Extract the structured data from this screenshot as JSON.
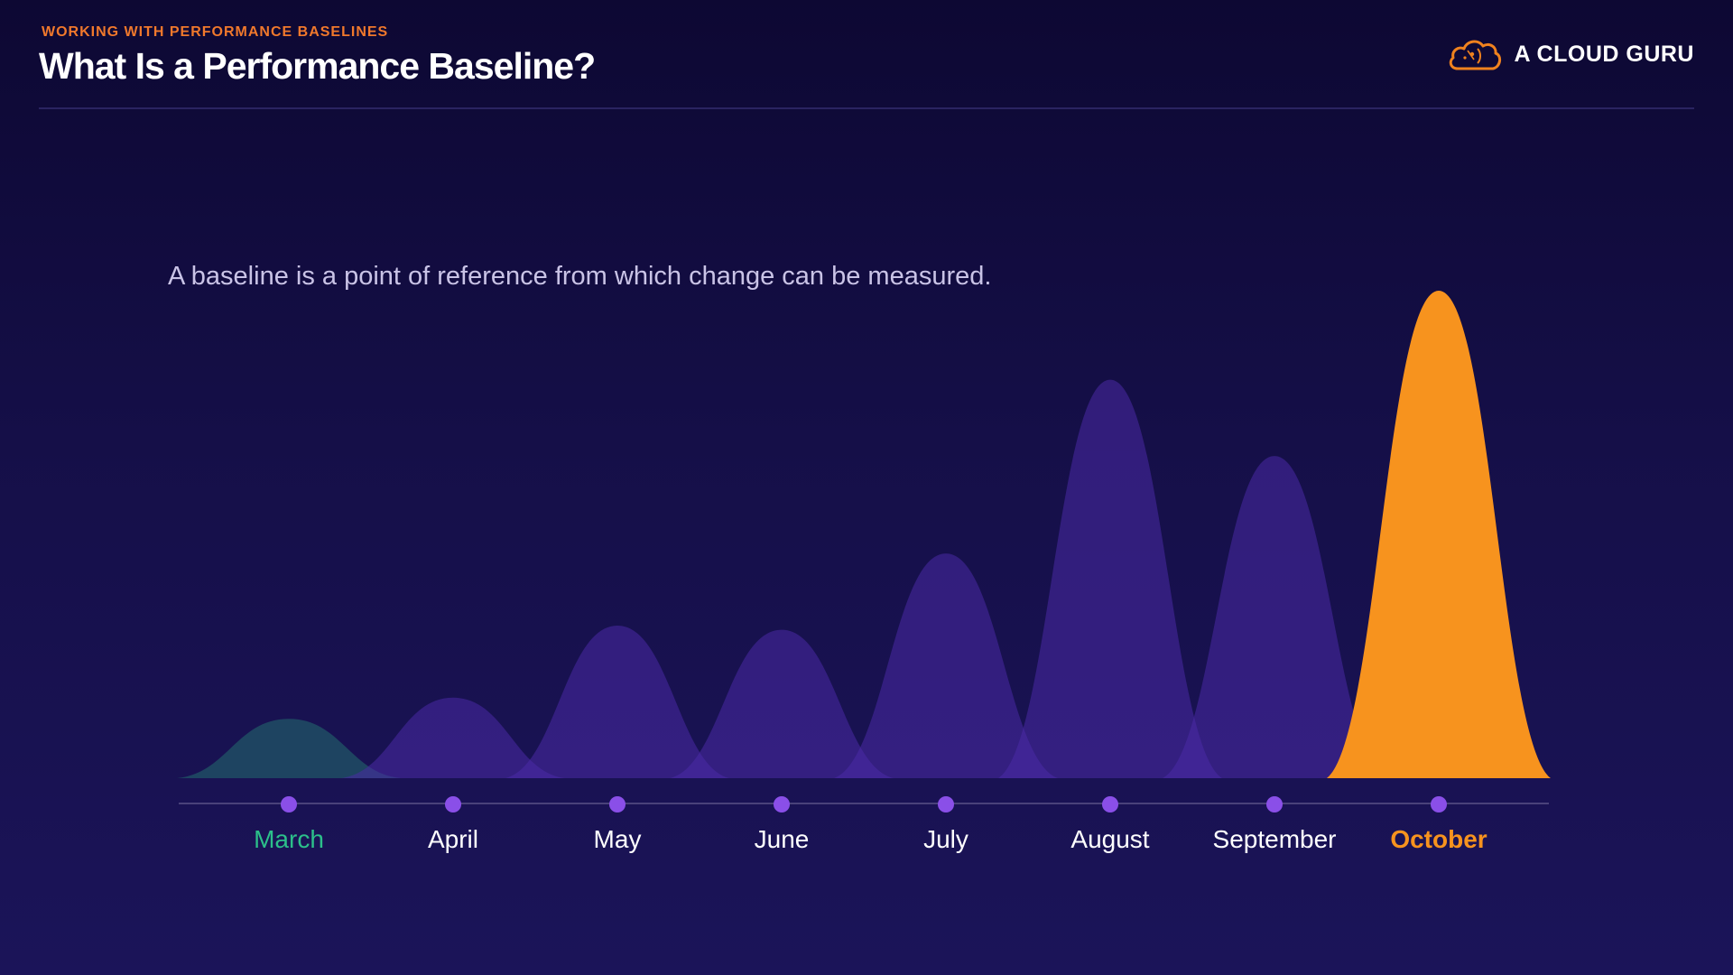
{
  "header": {
    "section": "WORKING WITH PERFORMANCE BASELINES",
    "title": "What Is a Performance Baseline?"
  },
  "brand": {
    "name": "A CLOUD GURU",
    "icon": "cloud-logo-icon",
    "color": "#f0821e"
  },
  "subtitle": "A baseline is a point of reference from which change can be measured.",
  "chart_data": {
    "type": "area",
    "title": "",
    "xlabel": "",
    "ylabel": "",
    "categories": [
      "March",
      "April",
      "May",
      "June",
      "July",
      "August",
      "September",
      "October"
    ],
    "values": [
      14,
      19,
      36,
      35,
      53,
      94,
      76,
      115
    ],
    "ylim": [
      0,
      115
    ],
    "grid": false,
    "legend": "none",
    "colors": {
      "baseline": "#2cbf8a",
      "baseline_fill": "#1f4a63",
      "default_fill": "#4a2aa6",
      "current": "#f7931e",
      "month_label": "#ffffff",
      "dot": "#8a4fe8",
      "axis": "#5a5387"
    },
    "highlight": {
      "baseline": "March",
      "current": "October"
    }
  }
}
